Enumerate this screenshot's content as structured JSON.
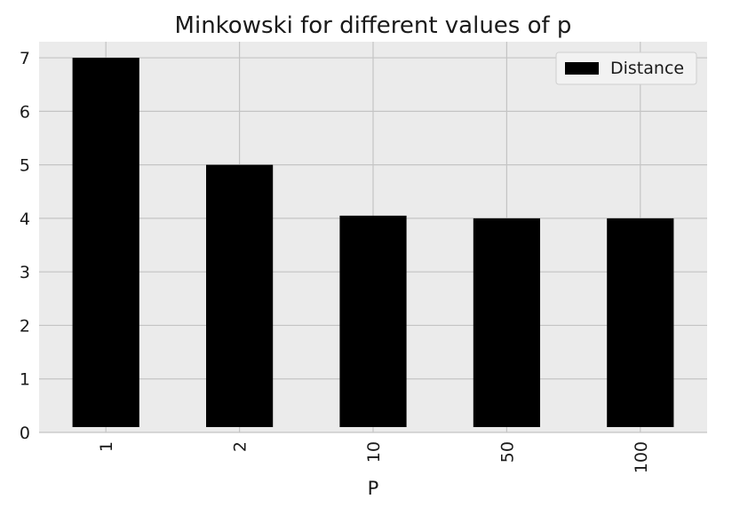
{
  "chart_data": {
    "type": "bar",
    "title": "Minkowski for different values of p",
    "xlabel": "P",
    "ylabel": "",
    "categories": [
      "1",
      "2",
      "10",
      "50",
      "100"
    ],
    "series": [
      {
        "name": "Distance",
        "values": [
          7.0,
          5.0,
          4.05,
          4.0,
          4.0
        ],
        "color": "#000000"
      }
    ],
    "ylim": [
      0,
      7.3
    ],
    "yticks": [
      "0",
      "1",
      "2",
      "3",
      "4",
      "5",
      "6",
      "7"
    ],
    "grid": true,
    "legend_position": "top-right",
    "x_tick_rotation": -90,
    "colors": {
      "plot_background": "#ebebeb",
      "grid": "#c4c4c4",
      "bar": "#000000"
    }
  }
}
